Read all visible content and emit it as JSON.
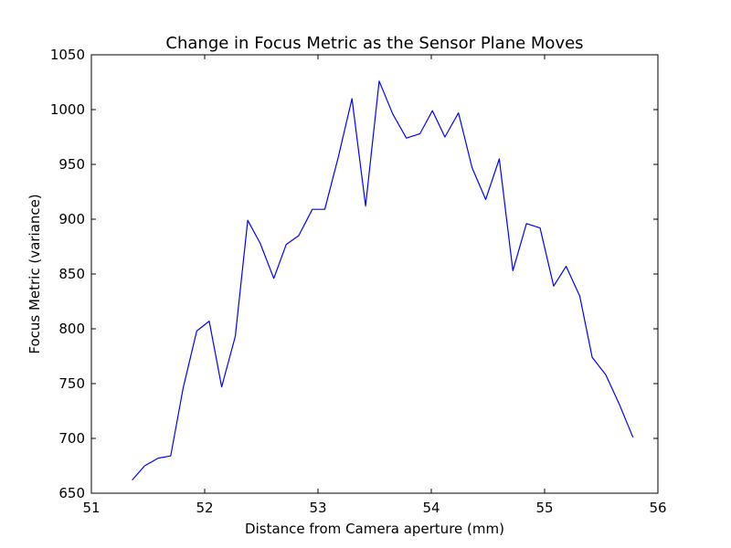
{
  "chart_data": {
    "type": "line",
    "title": "Change in Focus Metric as the Sensor Plane Moves",
    "xlabel": "Distance from Camera aperture (mm)",
    "ylabel": "Focus Metric (variance)",
    "xlim": [
      51,
      56
    ],
    "ylim": [
      650,
      1050
    ],
    "x_ticks": [
      "51",
      "52",
      "53",
      "54",
      "55",
      "56"
    ],
    "y_ticks": [
      "650",
      "700",
      "750",
      "800",
      "850",
      "900",
      "950",
      "1000",
      "1050"
    ],
    "grid": false,
    "legend": "none",
    "series": [
      {
        "color": "#0000ff",
        "x": [
          51.36,
          51.47,
          51.59,
          51.7,
          51.81,
          51.93,
          52.04,
          52.15,
          52.27,
          52.38,
          52.49,
          52.61,
          52.72,
          52.83,
          52.95,
          53.06,
          53.18,
          53.3,
          53.42,
          53.54,
          53.66,
          53.78,
          53.9,
          54.01,
          54.12,
          54.24,
          54.36,
          54.48,
          54.6,
          54.72,
          54.84,
          54.96,
          55.08,
          55.19,
          55.31,
          55.42,
          55.54,
          55.66,
          55.78
        ],
        "y": [
          662,
          675,
          682,
          684,
          746,
          798,
          807,
          747,
          793,
          899,
          878,
          846,
          877,
          885,
          909,
          909,
          957,
          1010,
          912,
          1026,
          996,
          974,
          978,
          999,
          975,
          997,
          947,
          918,
          955,
          853,
          896,
          892,
          839,
          857,
          830,
          774,
          758,
          731,
          701
        ]
      }
    ]
  }
}
